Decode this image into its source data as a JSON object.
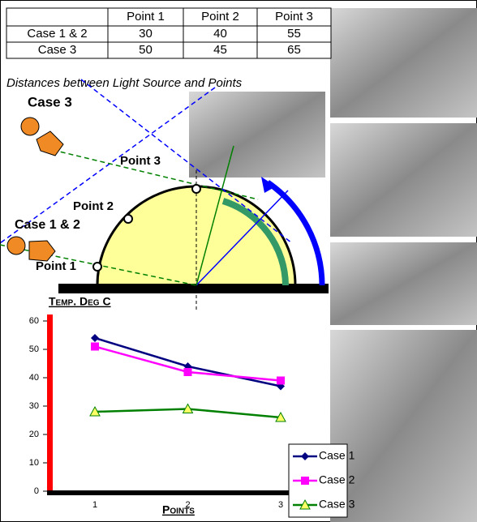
{
  "table": {
    "header": [
      "Point 1",
      "Point 2",
      "Point 3"
    ],
    "rows": [
      [
        "Case 1 & 2",
        "30",
        "40",
        "55"
      ],
      [
        "Case 3",
        "50",
        "45",
        "65"
      ]
    ],
    "caption": "Distances between Light Source and Points"
  },
  "diagram": {
    "case3": "Case 3",
    "case12": "Case 1 & 2",
    "point1": "Point 1",
    "point2": "Point 2",
    "point3": "Point 3"
  },
  "chart_data": {
    "type": "line",
    "y_label": "Temp. Deg C",
    "x_label": "Points",
    "categories": [
      "1",
      "2",
      "3"
    ],
    "series": [
      {
        "name": "Case 1",
        "color": "#000080",
        "marker": "diamond",
        "values": [
          54,
          44,
          37
        ]
      },
      {
        "name": "Case 2",
        "color": "#ff00ff",
        "marker": "square",
        "values": [
          51,
          42,
          39
        ]
      },
      {
        "name": "Case 3",
        "color": "#008000",
        "marker": "triangle",
        "values": [
          28,
          29,
          26
        ]
      }
    ],
    "ylim": [
      0,
      60
    ],
    "yticks": [
      0,
      10,
      20,
      30,
      40,
      50,
      60
    ]
  }
}
